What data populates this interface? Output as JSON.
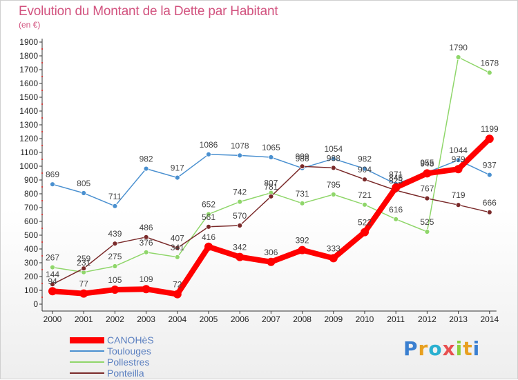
{
  "chart_data": {
    "type": "line",
    "title": "Evolution du Montant de la Dette par Habitant",
    "subtitle": "(en €)",
    "categories": [
      "2000",
      "2001",
      "2002",
      "2003",
      "2004",
      "2005",
      "2006",
      "2007",
      "2008",
      "2009",
      "2010",
      "2011",
      "2012",
      "2013",
      "2014"
    ],
    "ylim": [
      0,
      1900
    ],
    "yticks": [
      0,
      100,
      200,
      300,
      400,
      500,
      600,
      700,
      800,
      900,
      1000,
      1100,
      1200,
      1300,
      1400,
      1500,
      1600,
      1700,
      1800,
      1900
    ],
    "grid": false,
    "legend_position": "bottom-left",
    "series": [
      {
        "name": "Toulouges",
        "color": "#4a90d0",
        "values": [
          869,
          805,
          711,
          982,
          917,
          1086,
          1078,
          1065,
          986,
          1054,
          982,
          871,
          955,
          1044,
          937
        ]
      },
      {
        "name": "Pollestres",
        "color": "#8fd66a",
        "values": [
          267,
          231,
          275,
          376,
          341,
          652,
          742,
          807,
          731,
          795,
          721,
          616,
          525,
          1790,
          1678
        ]
      },
      {
        "name": "Ponteilla",
        "color": "#7a2a2a",
        "values": [
          144,
          259,
          439,
          486,
          407,
          561,
          570,
          781,
          999,
          988,
          904,
          825,
          767,
          719,
          666
        ]
      },
      {
        "name": "CANOHèS",
        "color": "#ff0000",
        "values": [
          94,
          77,
          105,
          109,
          72,
          416,
          342,
          306,
          392,
          333,
          522,
          845,
          948,
          979,
          1199
        ]
      }
    ],
    "data_labels": [
      [
        "869",
        "805",
        "711",
        "982",
        "917",
        "1086",
        "1078",
        "1065",
        "986",
        "1054",
        "982",
        "871",
        "955",
        "1044",
        "937"
      ],
      [
        "267",
        "231",
        "275",
        "376",
        "341",
        "652",
        "742",
        "807",
        "731",
        "795",
        "721",
        "616",
        "525",
        "1790",
        "1678"
      ],
      [
        "144",
        "259",
        "439",
        "486",
        "407",
        "561",
        "570",
        "781",
        "999",
        "988",
        "904",
        "825",
        "767",
        "719",
        "666"
      ],
      [
        "94",
        "77",
        "105",
        "109",
        "72",
        "416",
        "342",
        "306",
        "392",
        "333",
        "522",
        "845",
        "948",
        "979",
        "1199"
      ]
    ]
  },
  "legend": {
    "items": [
      {
        "label": "CANOHèS",
        "color": "#ff0000"
      },
      {
        "label": "Toulouges",
        "color": "#4a90d0"
      },
      {
        "label": "Pollestres",
        "color": "#8fd66a"
      },
      {
        "label": "Ponteilla",
        "color": "#7a2a2a"
      }
    ]
  },
  "logo": {
    "text": "Proxiti",
    "colors": [
      "#3a7fd0",
      "#e8a020",
      "#2ab0d0",
      "#e85050",
      "#8ccf3a",
      "#e8a020",
      "#3a7fd0"
    ]
  }
}
